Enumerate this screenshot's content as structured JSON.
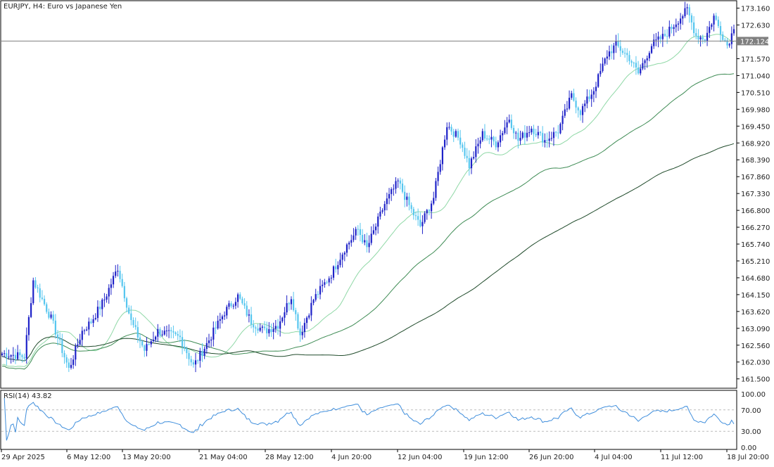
{
  "header": {
    "symbol_label": "EURJPY, H4:  Euro vs Japanese Yen"
  },
  "rsi_header": {
    "label": "RSI(14) 43.82"
  },
  "colors": {
    "bull_body": "#1e22c8",
    "bear_body": "#56c6ef",
    "ma_fast": "#8fd8a6",
    "ma_mid": "#3f8c55",
    "ma_slow": "#1f4a2a",
    "rsi_line": "#3f8edc",
    "grid_border": "#000000",
    "price_line": "#7f7f7f"
  },
  "chart_data": [
    {
      "type": "candlestick",
      "title": "EURJPY, H4:  Euro vs Japanese Yen",
      "y_tick_labels": [
        "173.160",
        "172.630",
        "172.124",
        "171.570",
        "171.040",
        "170.510",
        "169.980",
        "169.450",
        "168.920",
        "168.390",
        "167.860",
        "167.330",
        "166.800",
        "166.270",
        "165.740",
        "165.210",
        "164.680",
        "164.150",
        "163.620",
        "163.090",
        "162.560",
        "162.030",
        "161.500"
      ],
      "y_ticks": [
        173.16,
        172.63,
        171.57,
        171.04,
        170.51,
        169.98,
        169.45,
        168.92,
        168.39,
        167.86,
        167.33,
        166.8,
        166.27,
        165.74,
        165.21,
        164.68,
        164.15,
        163.62,
        163.09,
        162.56,
        162.03,
        161.5
      ],
      "ylim": [
        161.25,
        173.35
      ],
      "current_price": 172.124,
      "current_price_label": "172.124",
      "x_tick_labels": [
        "29 Apr 2025",
        "6 May 12:00",
        "13 May 20:00",
        "21 May 04:00",
        "28 May 12:00",
        "4 Jun 20:00",
        "12 Jun 04:00",
        "19 Jun 12:00",
        "26 Jun 20:00",
        "4 Jul 04:00",
        "11 Jul 12:00",
        "18 Jul 20:00"
      ],
      "anchors": [
        [
          0,
          162.3
        ],
        [
          10,
          162.2
        ],
        [
          14,
          164.6
        ],
        [
          22,
          163.4
        ],
        [
          30,
          161.8
        ],
        [
          36,
          163.0
        ],
        [
          40,
          163.3
        ],
        [
          46,
          164.0
        ],
        [
          52,
          165.0
        ],
        [
          58,
          163.3
        ],
        [
          64,
          162.4
        ],
        [
          70,
          163.0
        ],
        [
          80,
          162.8
        ],
        [
          86,
          161.9
        ],
        [
          92,
          162.6
        ],
        [
          100,
          163.6
        ],
        [
          106,
          164.1
        ],
        [
          112,
          163.3
        ],
        [
          118,
          163.0
        ],
        [
          124,
          163.2
        ],
        [
          130,
          164.1
        ],
        [
          134,
          162.9
        ],
        [
          140,
          164.0
        ],
        [
          148,
          164.8
        ],
        [
          154,
          165.6
        ],
        [
          160,
          166.2
        ],
        [
          164,
          165.6
        ],
        [
          172,
          167.0
        ],
        [
          178,
          167.7
        ],
        [
          184,
          166.8
        ],
        [
          188,
          166.3
        ],
        [
          194,
          167.2
        ],
        [
          200,
          169.5
        ],
        [
          206,
          169.0
        ],
        [
          210,
          168.2
        ],
        [
          216,
          169.2
        ],
        [
          222,
          168.9
        ],
        [
          228,
          169.7
        ],
        [
          232,
          169.0
        ],
        [
          238,
          169.4
        ],
        [
          244,
          169.0
        ],
        [
          250,
          169.3
        ],
        [
          256,
          170.4
        ],
        [
          260,
          169.9
        ],
        [
          266,
          170.6
        ],
        [
          272,
          171.7
        ],
        [
          276,
          172.0
        ],
        [
          282,
          171.6
        ],
        [
          286,
          171.1
        ],
        [
          292,
          172.0
        ],
        [
          298,
          172.3
        ],
        [
          304,
          172.8
        ],
        [
          308,
          173.1
        ],
        [
          312,
          172.3
        ],
        [
          316,
          172.2
        ],
        [
          320,
          172.9
        ],
        [
          326,
          172.0
        ],
        [
          329,
          172.5
        ]
      ],
      "ma_series": [
        {
          "period": "fast",
          "start": 161.95,
          "end": 172.1
        },
        {
          "period": "mid",
          "start": 161.9,
          "end": 171.1
        },
        {
          "period": "slow",
          "start": 162.2,
          "end": 168.9
        }
      ]
    },
    {
      "type": "line",
      "title": "RSI(14) 43.82",
      "y_tick_labels": [
        "100.00",
        "70.00",
        "30.00",
        "0.00"
      ],
      "levels": [
        70,
        30
      ],
      "ylim": [
        0,
        100
      ],
      "last_value": 43.82
    }
  ]
}
